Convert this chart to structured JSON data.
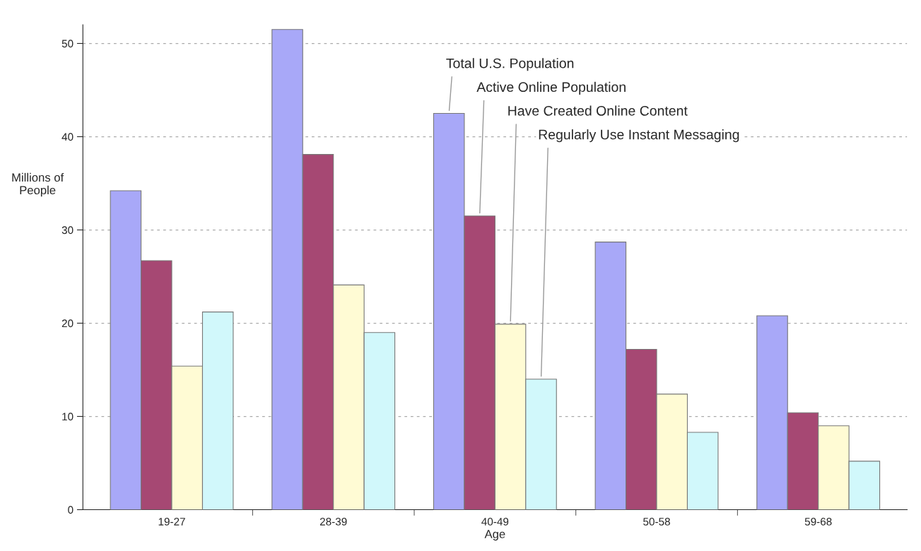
{
  "chart_data": {
    "type": "bar",
    "xlabel": "Age",
    "ylabel": "Millions of\nPeople",
    "categories": [
      "19-27",
      "28-39",
      "40-49",
      "50-58",
      "59-68"
    ],
    "series": [
      {
        "name": "Total U.S. Population",
        "color": "#a8a8f8",
        "values": [
          34.2,
          51.5,
          42.5,
          28.7,
          20.8
        ]
      },
      {
        "name": "Active Online Population",
        "color": "#a64873",
        "values": [
          26.7,
          38.1,
          31.5,
          17.2,
          10.4
        ]
      },
      {
        "name": "Have Created Online Content",
        "color": "#fffbd4",
        "values": [
          15.4,
          24.1,
          19.9,
          12.4,
          9.0
        ]
      },
      {
        "name": "Regularly Use Instant Messaging",
        "color": "#d1f8fb",
        "values": [
          21.2,
          19.0,
          14.0,
          8.3,
          5.2
        ]
      }
    ],
    "ylim": [
      0,
      52
    ],
    "yticks": [
      0,
      10,
      20,
      30,
      40,
      50
    ],
    "grid": "y",
    "legend": false
  }
}
